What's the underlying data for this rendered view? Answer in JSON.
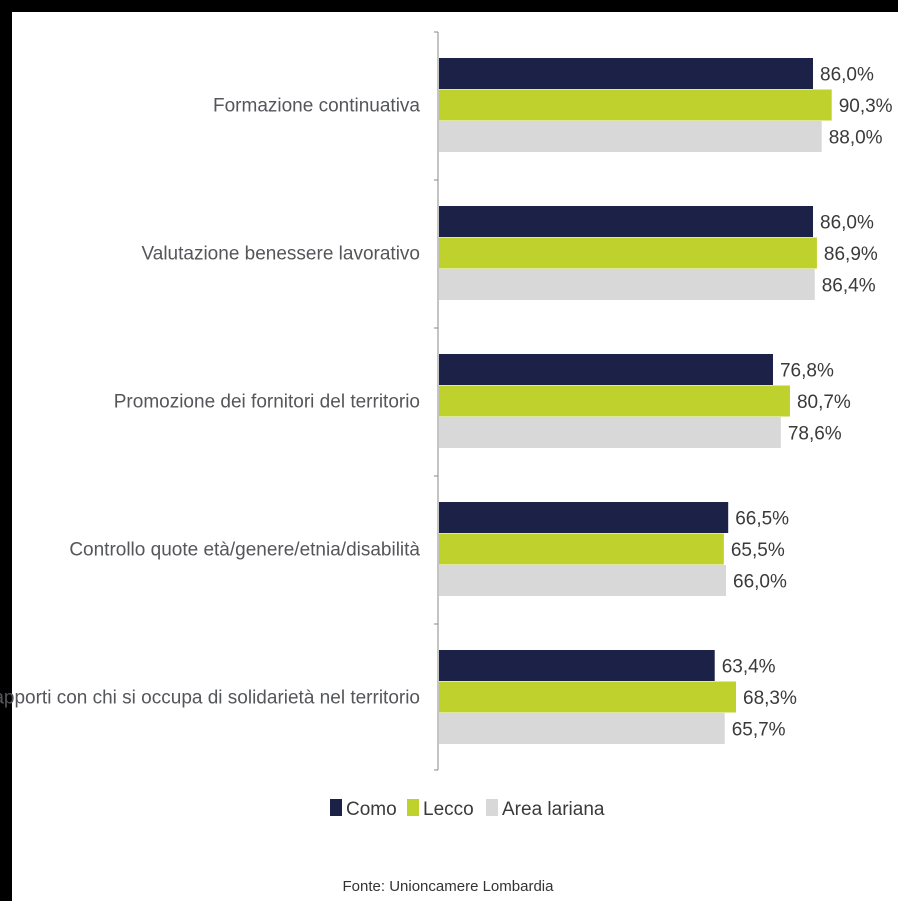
{
  "chart_data": {
    "type": "bar",
    "orientation": "horizontal",
    "categories": [
      "Formazione continuativa",
      "Valutazione benessere lavorativo",
      "Promozione dei fornitori del territorio",
      "Controllo quote età/genere/etnia/disabilità",
      "Rapporti con chi si occupa di solidarietà nel territorio"
    ],
    "series": [
      {
        "name": "Como",
        "color": "#1c2148",
        "values": [
          86.0,
          86.0,
          76.8,
          66.5,
          63.4
        ],
        "labels": [
          "86,0%",
          "86,0%",
          "76,8%",
          "66,5%",
          "63,4%"
        ]
      },
      {
        "name": "Lecco",
        "color": "#bfd12c",
        "values": [
          90.3,
          86.9,
          80.7,
          65.5,
          68.3
        ],
        "labels": [
          "90,3%",
          "86,9%",
          "80,7%",
          "65,5%",
          "68,3%"
        ]
      },
      {
        "name": "Area lariana",
        "color": "#d9d8d8",
        "values": [
          88.0,
          86.4,
          78.6,
          66.0,
          65.7
        ],
        "labels": [
          "88,0%",
          "86,4%",
          "78,6%",
          "66,0%",
          "65,7%"
        ]
      }
    ],
    "xlim": [
      0,
      100
    ],
    "grid": false,
    "legend_position": "bottom-center"
  },
  "source": "Fonte: Unioncamere Lombardia"
}
